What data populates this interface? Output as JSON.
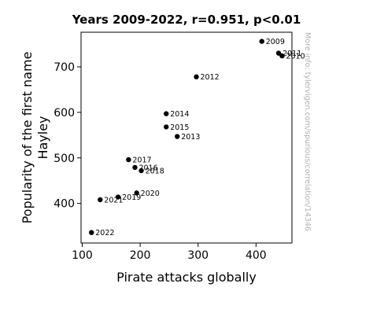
{
  "chart_data": {
    "type": "scatter",
    "title": "Years 2009-2022, r=0.951, p<0.01",
    "xlabel": "Pirate attacks globally",
    "ylabel": [
      "Popularity of the first name",
      "Hayley"
    ],
    "xlim": [
      98,
      462
    ],
    "ylim": [
      313,
      776
    ],
    "xticks": [
      100,
      200,
      300,
      400
    ],
    "yticks": [
      400,
      500,
      600,
      700
    ],
    "grid": false,
    "marker_color": "#000000",
    "watermark": "More info: tylervigen.com/spurious/correlation/14346",
    "points": [
      {
        "label": "2009",
        "x": 410,
        "y": 756
      },
      {
        "label": "2010",
        "x": 445,
        "y": 724
      },
      {
        "label": "2011",
        "x": 439,
        "y": 730
      },
      {
        "label": "2012",
        "x": 297,
        "y": 678
      },
      {
        "label": "2013",
        "x": 264,
        "y": 547
      },
      {
        "label": "2014",
        "x": 245,
        "y": 597
      },
      {
        "label": "2015",
        "x": 245,
        "y": 568
      },
      {
        "label": "2016",
        "x": 191,
        "y": 479
      },
      {
        "label": "2017",
        "x": 180,
        "y": 496
      },
      {
        "label": "2018",
        "x": 202,
        "y": 472
      },
      {
        "label": "2019",
        "x": 162,
        "y": 414
      },
      {
        "label": "2020",
        "x": 194,
        "y": 423
      },
      {
        "label": "2021",
        "x": 131,
        "y": 408
      },
      {
        "label": "2022",
        "x": 116,
        "y": 336
      }
    ]
  }
}
